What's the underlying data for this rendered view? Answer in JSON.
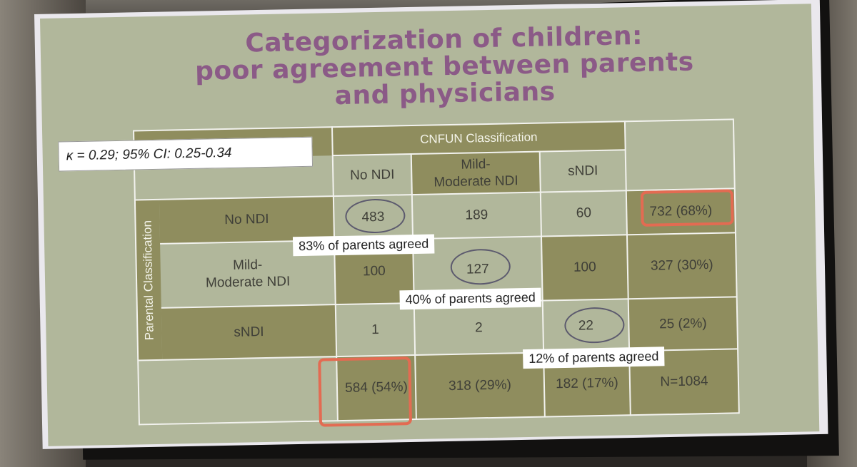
{
  "title": {
    "line1": "Categorization of children:",
    "line2": "poor agreement between parents",
    "line3": "and physicians"
  },
  "kappa_note": "κ = 0.29; 95% CI: 0.25-0.34",
  "table": {
    "col_group_header": "CNFUN Classification",
    "row_group_header": "Parental Classification",
    "col_headers": [
      "No NDI",
      "Mild-\nModerate NDI",
      "sNDI"
    ],
    "rows": [
      {
        "label": "No NDI",
        "values": [
          "483",
          "189",
          "60"
        ],
        "total": "732 (68%)"
      },
      {
        "label": "Mild-\nModerate NDI",
        "values": [
          "100",
          "127",
          "100"
        ],
        "total": "327 (30%)"
      },
      {
        "label": "sNDI",
        "values": [
          "1",
          "2",
          "22"
        ],
        "total": "25 (2%)"
      }
    ],
    "col_totals": [
      "584 (54%)",
      "318 (29%)",
      "182 (17%)"
    ],
    "grand_total": "N=1084"
  },
  "agreement_notes": [
    "83% of parents agreed",
    "40% of parents agreed",
    "12% of parents agreed"
  ],
  "colors": {
    "slide_bg": "#b1b79b",
    "cell_dark": "#8f8d5e",
    "title": "#8b5a87",
    "highlight": "#e36b52"
  }
}
